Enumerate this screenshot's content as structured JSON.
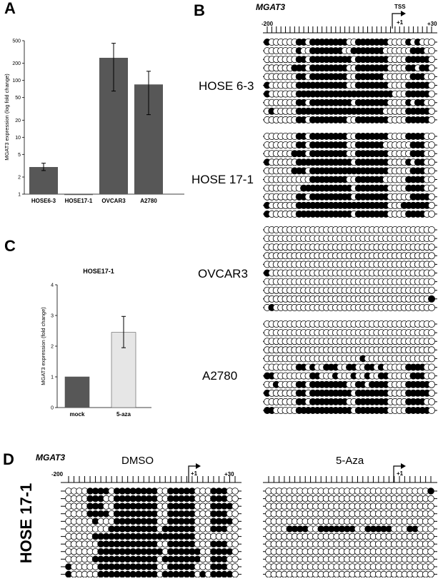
{
  "panels": {
    "a": "A",
    "b": "B",
    "c": "C",
    "d": "D"
  },
  "chart_data": [
    {
      "type": "bar",
      "panel": "A",
      "categories": [
        "HOSE6-3",
        "HOSE17-1",
        "OVCAR3",
        "A2780"
      ],
      "values": [
        3.0,
        1.0,
        250,
        85
      ],
      "error_low": [
        2.6,
        1.0,
        65,
        25
      ],
      "error_high": [
        3.5,
        1.0,
        450,
        145
      ],
      "ylabel": "MGAT3 expression (log fold change)",
      "yscale": "log",
      "ylim": [
        1,
        500
      ],
      "yticks": [
        "1",
        "2",
        "5",
        "10",
        "20",
        "50",
        "100",
        "200",
        "500"
      ],
      "bar_color": "#575757"
    },
    {
      "type": "bar",
      "panel": "C",
      "title": "HOSE17-1",
      "categories": [
        "mock",
        "5-aza"
      ],
      "values": [
        1.0,
        2.45
      ],
      "error_low": [
        1.0,
        1.95
      ],
      "error_high": [
        1.0,
        2.97
      ],
      "ylabel": "MGAT3 expression (fold change)",
      "ylim": [
        0,
        4
      ],
      "yticks": [
        "0",
        "1",
        "2",
        "3",
        "4"
      ],
      "bar_colors": [
        "#575757",
        "#e6e6e6"
      ]
    }
  ],
  "panel_b": {
    "gene": "MGAT3",
    "start_label": "-200",
    "end_label": "+30",
    "tss_label": "TSS",
    "plus1_label": "+1",
    "groups": [
      {
        "name": "HOSE 6-3",
        "rows": [
          "1000000110111111110011111110000101000",
          "0000000100111111100111111100000011100",
          "0000000110111111111011111110000111110",
          "0000001110111111110011111110000110110",
          "0000000110111111110011111100000011100",
          "1000000111111111110011111110000111110",
          "1000000111111111111111111111000111110",
          "0000000110111111111011111110000101100",
          "0100000111111111111111111100000111110",
          "0000000110111111110011111110000111110"
        ]
      },
      {
        "name": "HOSE 17-1",
        "rows": [
          "0000000110111111110011111110000111100",
          "0000000110111111110011111100000011100",
          "0000001110111111110011111110000011100",
          "1000000111111111111011111110000101100",
          "0000001110111111111111111110000011100",
          "0000000000111111110011111100000111100",
          "0000000011111111111011111110000111100",
          "0000000110111111111011111110000011110",
          "1000000111111111111111111110001111110",
          "1000000111111111111011111110000111100"
        ]
      },
      {
        "name": "OVCAR3",
        "rows": [
          "0000000000000000000000000000000000000",
          "0000000000000000000000000000000000000",
          "0000000000000000000000000000000000000",
          "0000000000000000000000000000000000000",
          "0000000000000000000000000000000000000",
          "1000000000000000000000000000000000000",
          "0000000000000000000000000000000000000",
          "0000000000000000000000000000000000000",
          "0000000000000000000000000000000000001",
          "0100000000000000000000000000000000000"
        ]
      },
      {
        "name": "A2780",
        "rows": [
          "0000000000000000000000000000000000000",
          "0000000000000000000000000000000000000",
          "0000000000000000000000000000000000000",
          "0000000000000000000000000000000000000",
          "0000000000000000000001000000000000000",
          "0000000110100111001100110100000111100",
          "1100000000110001000100100110000011100",
          "0010000110111111110011011110000111110",
          "1000000110111111111011111110000111110",
          "0000000110111111110011111110000111100",
          "1100000111111111111011111110000111110"
        ]
      }
    ]
  },
  "panel_d": {
    "gene": "MGAT3",
    "start_label": "-200",
    "end_label": "+30",
    "plus1_label": "+1",
    "side_label": "HOSE 17-1",
    "left_title": "DMSO",
    "right_title": "5-Aza",
    "left_rows": [
      "00001111011111111001111100011100",
      "00001110011111111001111100011100",
      "00001110011111111001111100011110",
      "00001111011111111001111100011100",
      "00000100011111111001111100011110",
      "00000000111111111011111100011100",
      "00000111111111111111111100000000",
      "00000011111111111001111100011100",
      "00000011111111111101111110011110",
      "00000111111111111011111110011100",
      "10000011111111111001111100011100",
      "10000011111111111011111101011110"
    ],
    "right_rows": [
      "00000000000000000000000000000001",
      "00000000000000000000000000000000",
      "00000000000000000000000000000000",
      "00000000000000000000000000000000",
      "00000000000000000000000000000000",
      "00001111001111111001111100011000",
      "00000000000000000000000000000000",
      "00000000000000000000000000000000",
      "00000000000000000000000000000000",
      "00000000000000000000000000000000",
      "00000000000000000000000000000000",
      "00000000000000000000000000000000"
    ]
  }
}
